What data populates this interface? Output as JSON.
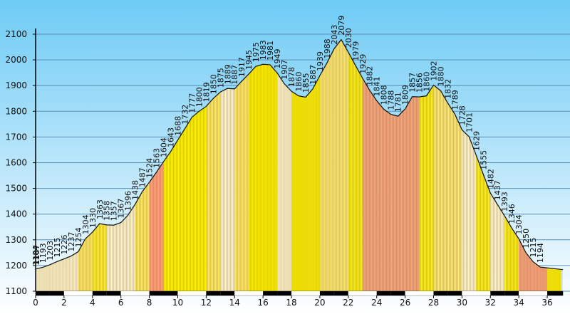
{
  "chart_data": {
    "type": "area",
    "title": "",
    "xlabel": "",
    "ylabel": "",
    "xlim": [
      0,
      37.1
    ],
    "ylim": [
      1100,
      2100
    ],
    "y_ticks": [
      1100,
      1200,
      1300,
      1400,
      1500,
      1600,
      1700,
      1800,
      1900,
      2000,
      2100
    ],
    "x_ticks": [
      0,
      2,
      4,
      6,
      8,
      10,
      12,
      14,
      16,
      18,
      20,
      22,
      24,
      26,
      28,
      30,
      32,
      34,
      36
    ],
    "x_tick_labels": [
      "0",
      "2",
      "4",
      "6",
      "8",
      "10",
      "12",
      "14",
      "16",
      "18",
      "20",
      "22",
      "24",
      "26",
      "28",
      "30",
      "32",
      "34",
      "36"
    ],
    "grid": true,
    "background": [
      "#6ecbf5",
      "#ffffff"
    ],
    "points": [
      {
        "x": 0.0,
        "y": 1184,
        "label": "1184"
      },
      {
        "x": 0.05,
        "y": 1187,
        "label": "1187"
      },
      {
        "x": 0.5,
        "y": 1193,
        "label": "1193"
      },
      {
        "x": 1.0,
        "y": 1203,
        "label": "1203"
      },
      {
        "x": 1.5,
        "y": 1215,
        "label": "1215"
      },
      {
        "x": 2.0,
        "y": 1226,
        "label": "1226"
      },
      {
        "x": 2.5,
        "y": 1237,
        "label": "1237"
      },
      {
        "x": 3.0,
        "y": 1254,
        "label": "1254"
      },
      {
        "x": 3.5,
        "y": 1304,
        "label": "1304"
      },
      {
        "x": 4.0,
        "y": 1330,
        "label": "1330"
      },
      {
        "x": 4.5,
        "y": 1363,
        "label": "1363"
      },
      {
        "x": 5.0,
        "y": 1358,
        "label": "1358"
      },
      {
        "x": 5.5,
        "y": 1357,
        "label": "1357"
      },
      {
        "x": 6.0,
        "y": 1367,
        "label": "1367"
      },
      {
        "x": 6.5,
        "y": 1396,
        "label": "1396"
      },
      {
        "x": 7.0,
        "y": 1438,
        "label": "1438"
      },
      {
        "x": 7.5,
        "y": 1487,
        "label": "1487"
      },
      {
        "x": 8.0,
        "y": 1524,
        "label": "1524"
      },
      {
        "x": 8.5,
        "y": 1563,
        "label": "1563"
      },
      {
        "x": 9.0,
        "y": 1604,
        "label": "1604"
      },
      {
        "x": 9.5,
        "y": 1643,
        "label": "1643"
      },
      {
        "x": 10.0,
        "y": 1688,
        "label": "1688"
      },
      {
        "x": 10.5,
        "y": 1732,
        "label": "1732"
      },
      {
        "x": 11.0,
        "y": 1777,
        "label": "1777"
      },
      {
        "x": 11.5,
        "y": 1800,
        "label": "1800"
      },
      {
        "x": 12.0,
        "y": 1819,
        "label": "1819"
      },
      {
        "x": 12.5,
        "y": 1850,
        "label": "1850"
      },
      {
        "x": 13.0,
        "y": 1875,
        "label": "1875"
      },
      {
        "x": 13.5,
        "y": 1889,
        "label": "1889"
      },
      {
        "x": 14.0,
        "y": 1887,
        "label": "1887"
      },
      {
        "x": 14.5,
        "y": 1917,
        "label": "1917"
      },
      {
        "x": 15.0,
        "y": 1945,
        "label": "1945"
      },
      {
        "x": 15.5,
        "y": 1975,
        "label": "1975"
      },
      {
        "x": 16.0,
        "y": 1983,
        "label": "1983"
      },
      {
        "x": 16.5,
        "y": 1981,
        "label": "1981"
      },
      {
        "x": 17.0,
        "y": 1949,
        "label": "1949"
      },
      {
        "x": 17.5,
        "y": 1907,
        "label": "1907"
      },
      {
        "x": 18.0,
        "y": 1878,
        "label": "1878"
      },
      {
        "x": 18.5,
        "y": 1860,
        "label": "1860"
      },
      {
        "x": 19.0,
        "y": 1855,
        "label": "1855"
      },
      {
        "x": 19.5,
        "y": 1887,
        "label": "1887"
      },
      {
        "x": 20.0,
        "y": 1939,
        "label": "1939"
      },
      {
        "x": 20.5,
        "y": 1988,
        "label": "1988"
      },
      {
        "x": 21.0,
        "y": 2043,
        "label": "2043"
      },
      {
        "x": 21.5,
        "y": 2079,
        "label": "2079"
      },
      {
        "x": 22.0,
        "y": 2030,
        "label": "2030"
      },
      {
        "x": 22.5,
        "y": 1979,
        "label": "1979"
      },
      {
        "x": 23.0,
        "y": 1929,
        "label": "1929"
      },
      {
        "x": 23.5,
        "y": 1882,
        "label": "1882"
      },
      {
        "x": 24.0,
        "y": 1841,
        "label": "1841"
      },
      {
        "x": 24.5,
        "y": 1808,
        "label": "1808"
      },
      {
        "x": 25.0,
        "y": 1788,
        "label": "1788"
      },
      {
        "x": 25.5,
        "y": 1781,
        "label": "1781"
      },
      {
        "x": 26.0,
        "y": 1809,
        "label": "1809"
      },
      {
        "x": 26.5,
        "y": 1857,
        "label": "1857"
      },
      {
        "x": 27.0,
        "y": 1856,
        "label": "1856"
      },
      {
        "x": 27.5,
        "y": 1860,
        "label": "1860"
      },
      {
        "x": 28.0,
        "y": 1902,
        "label": "1902"
      },
      {
        "x": 28.5,
        "y": 1880,
        "label": "1880"
      },
      {
        "x": 29.0,
        "y": 1832,
        "label": "1832"
      },
      {
        "x": 29.5,
        "y": 1789,
        "label": "1789"
      },
      {
        "x": 30.0,
        "y": 1728,
        "label": "1728"
      },
      {
        "x": 30.5,
        "y": 1701,
        "label": "1701"
      },
      {
        "x": 31.0,
        "y": 1629,
        "label": "1629"
      },
      {
        "x": 31.5,
        "y": 1555,
        "label": "1555"
      },
      {
        "x": 32.0,
        "y": 1482,
        "label": "1482"
      },
      {
        "x": 32.5,
        "y": 1437,
        "label": "1437"
      },
      {
        "x": 33.0,
        "y": 1393,
        "label": "1393"
      },
      {
        "x": 33.5,
        "y": 1346,
        "label": "1346"
      },
      {
        "x": 34.0,
        "y": 1304,
        "label": "1304"
      },
      {
        "x": 34.5,
        "y": 1250,
        "label": "1250"
      },
      {
        "x": 35.0,
        "y": 1215,
        "label": "1215"
      },
      {
        "x": 35.5,
        "y": 1194,
        "label": "1194"
      }
    ],
    "segments": [
      {
        "x0": 0,
        "x1": 1,
        "color": "#fff2c8"
      },
      {
        "x0": 1,
        "x1": 2,
        "color": "#fff2c8"
      },
      {
        "x0": 2,
        "x1": 3,
        "color": "#fff2c8"
      },
      {
        "x0": 3,
        "x1": 4,
        "color": "#ffe76a"
      },
      {
        "x0": 4,
        "x1": 5,
        "color": "#ffea3d"
      },
      {
        "x0": 5,
        "x1": 6,
        "color": "#fff2c8"
      },
      {
        "x0": 6,
        "x1": 7,
        "color": "#fff2c8"
      },
      {
        "x0": 7,
        "x1": 8,
        "color": "#ffe76a"
      },
      {
        "x0": 8,
        "x1": 9,
        "color": "#ffa17a"
      },
      {
        "x0": 9,
        "x1": 10,
        "color": "#ffef00"
      },
      {
        "x0": 10,
        "x1": 11,
        "color": "#ffef00"
      },
      {
        "x0": 11,
        "x1": 12,
        "color": "#ffef00"
      },
      {
        "x0": 12,
        "x1": 13,
        "color": "#ffe76a"
      },
      {
        "x0": 13,
        "x1": 14,
        "color": "#fff2c8"
      },
      {
        "x0": 14,
        "x1": 15,
        "color": "#ffe76a"
      },
      {
        "x0": 15,
        "x1": 16,
        "color": "#ffef00"
      },
      {
        "x0": 16,
        "x1": 17,
        "color": "#ffef00"
      },
      {
        "x0": 17,
        "x1": 18,
        "color": "#fff2c8"
      },
      {
        "x0": 18,
        "x1": 19,
        "color": "#ffef00"
      },
      {
        "x0": 19,
        "x1": 20,
        "color": "#ffef00"
      },
      {
        "x0": 20,
        "x1": 21,
        "color": "#ffe76a"
      },
      {
        "x0": 21,
        "x1": 22,
        "color": "#ffe76a"
      },
      {
        "x0": 22,
        "x1": 23,
        "color": "#ffef00"
      },
      {
        "x0": 23,
        "x1": 24,
        "color": "#ffa17a"
      },
      {
        "x0": 24,
        "x1": 25,
        "color": "#ffa17a"
      },
      {
        "x0": 25,
        "x1": 26,
        "color": "#ffa17a"
      },
      {
        "x0": 26,
        "x1": 27,
        "color": "#ffa17a"
      },
      {
        "x0": 27,
        "x1": 28,
        "color": "#ffef00"
      },
      {
        "x0": 28,
        "x1": 29,
        "color": "#ffe76a"
      },
      {
        "x0": 29,
        "x1": 30,
        "color": "#ffe76a"
      },
      {
        "x0": 30,
        "x1": 31,
        "color": "#fff2c8"
      },
      {
        "x0": 31,
        "x1": 32,
        "color": "#ffef00"
      },
      {
        "x0": 32,
        "x1": 33,
        "color": "#fff2c8"
      },
      {
        "x0": 33,
        "x1": 34,
        "color": "#ffef00"
      },
      {
        "x0": 34,
        "x1": 35,
        "color": "#ffa17a"
      },
      {
        "x0": 35,
        "x1": 36,
        "color": "#ffa17a"
      },
      {
        "x0": 36,
        "x1": 37,
        "color": "#ffef00"
      }
    ],
    "km_bar_colors": [
      "#000000",
      "#ffffff"
    ]
  }
}
